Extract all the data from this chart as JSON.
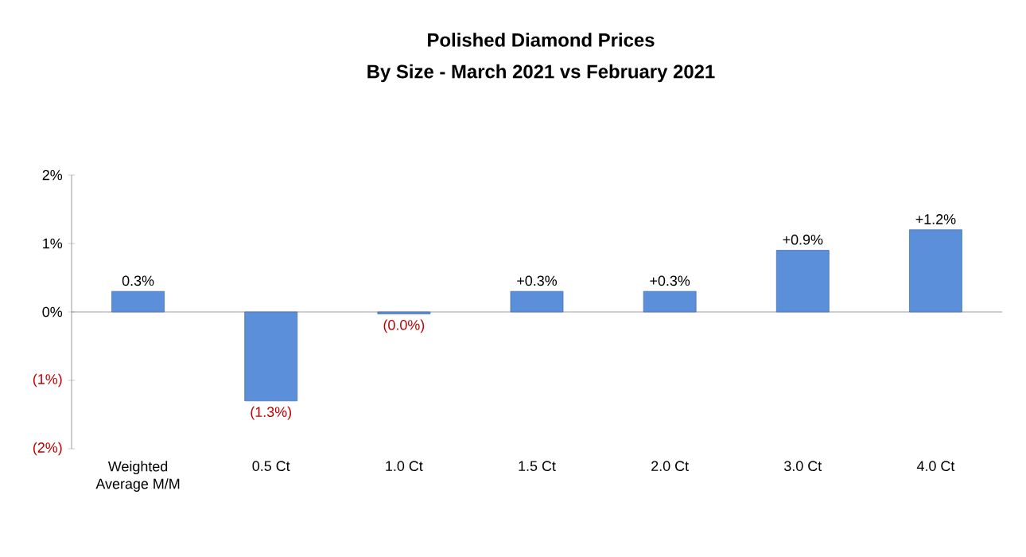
{
  "chart_data": {
    "type": "bar",
    "title": "Polished Diamond Prices",
    "subtitle": "By Size - March 2021 vs February 2021",
    "categories": [
      "Weighted Average M/M",
      "0.5 Ct",
      "1.0 Ct",
      "1.5 Ct",
      "2.0 Ct",
      "3.0 Ct",
      "4.0 Ct"
    ],
    "values": [
      0.3,
      -1.3,
      -0.03,
      0.3,
      0.3,
      0.9,
      1.2
    ],
    "yticks": [
      {
        "value": -2,
        "label": "(2%)"
      },
      {
        "value": -1,
        "label": "(1%)"
      },
      {
        "value": 0,
        "label": "0%"
      },
      {
        "value": 1,
        "label": "1%"
      },
      {
        "value": 2,
        "label": "2%"
      }
    ],
    "value_labels": [
      "0.3%",
      "(1.3%)",
      "(0.0%)",
      "+0.3%",
      "+0.3%",
      "+0.9%",
      "+1.2%"
    ],
    "color": "#5b8fd9",
    "ylim": [
      -2,
      2
    ]
  }
}
